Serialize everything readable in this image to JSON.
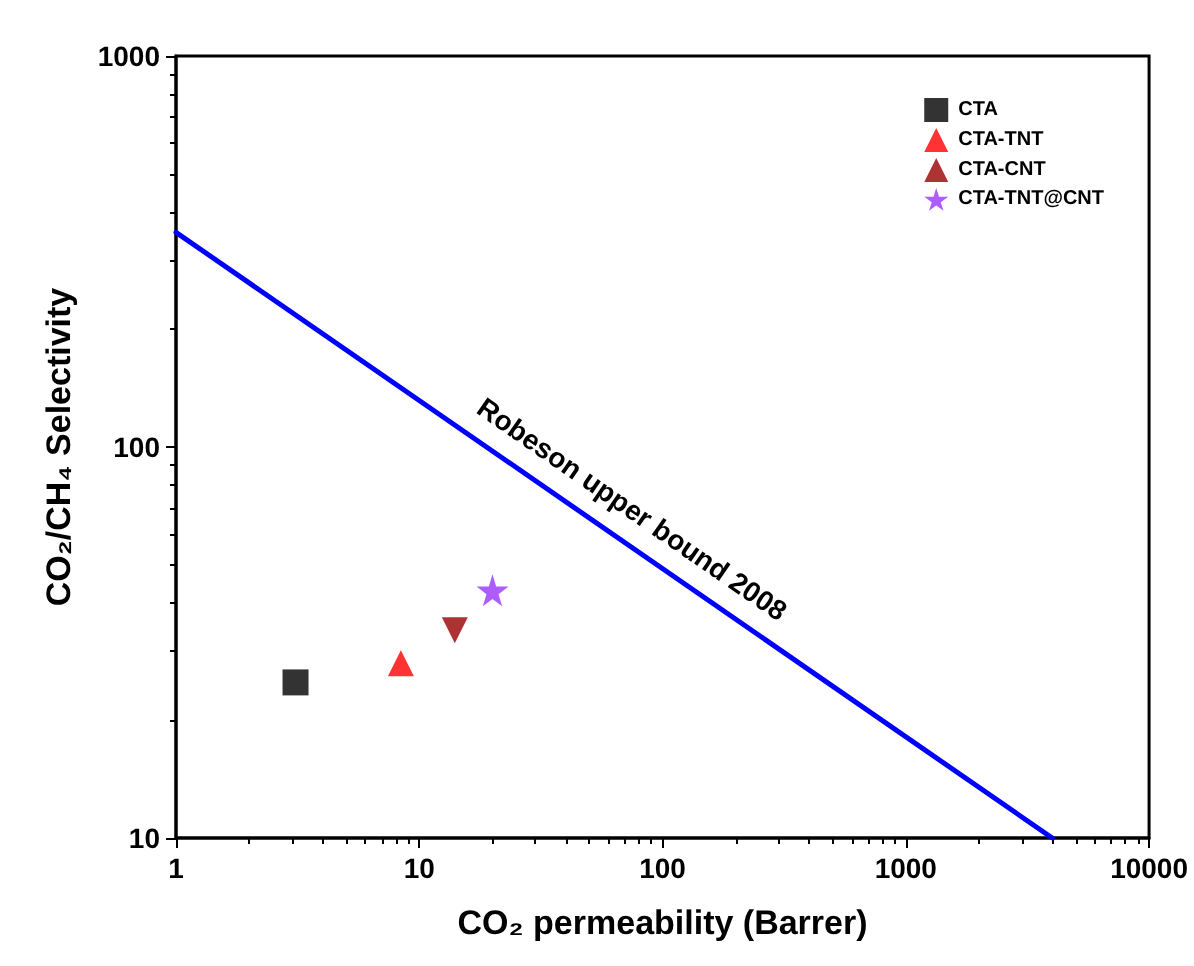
{
  "chart_data": {
    "type": "scatter",
    "xlabel": "CO₂ permeability (Barrer)",
    "ylabel": "CO₂/CH₄ Selectivity",
    "log": "xy",
    "xlim": [
      1,
      10000
    ],
    "ylim": [
      10,
      1000
    ],
    "xticks": [
      1,
      10,
      100,
      1000,
      10000
    ],
    "yticks": [
      10,
      100,
      1000
    ],
    "grid": false,
    "legend": "top right",
    "annotations": [
      "Robeson upper bound 2008"
    ],
    "series": [
      {
        "name": "CTA",
        "color": "#000000",
        "marker": "square",
        "x": [
          3.1
        ],
        "values": [
          25
        ]
      },
      {
        "name": "CTA-TNT",
        "color": "#ff0000",
        "marker": "triangle",
        "x": [
          8.4
        ],
        "values": [
          28
        ]
      },
      {
        "name": "CTA-CNT",
        "color": "#990000",
        "marker": "triangle-down",
        "x": [
          14
        ],
        "values": [
          34
        ]
      },
      {
        "name": "CTA-TNT@CNT",
        "color": "#9933ff",
        "marker": "star",
        "x": [
          20
        ],
        "values": [
          43
        ]
      },
      {
        "type": "line",
        "color": "#0000ff",
        "marker": "none",
        "x": [
          1,
          4000
        ],
        "values": [
          354,
          10
        ]
      }
    ]
  }
}
